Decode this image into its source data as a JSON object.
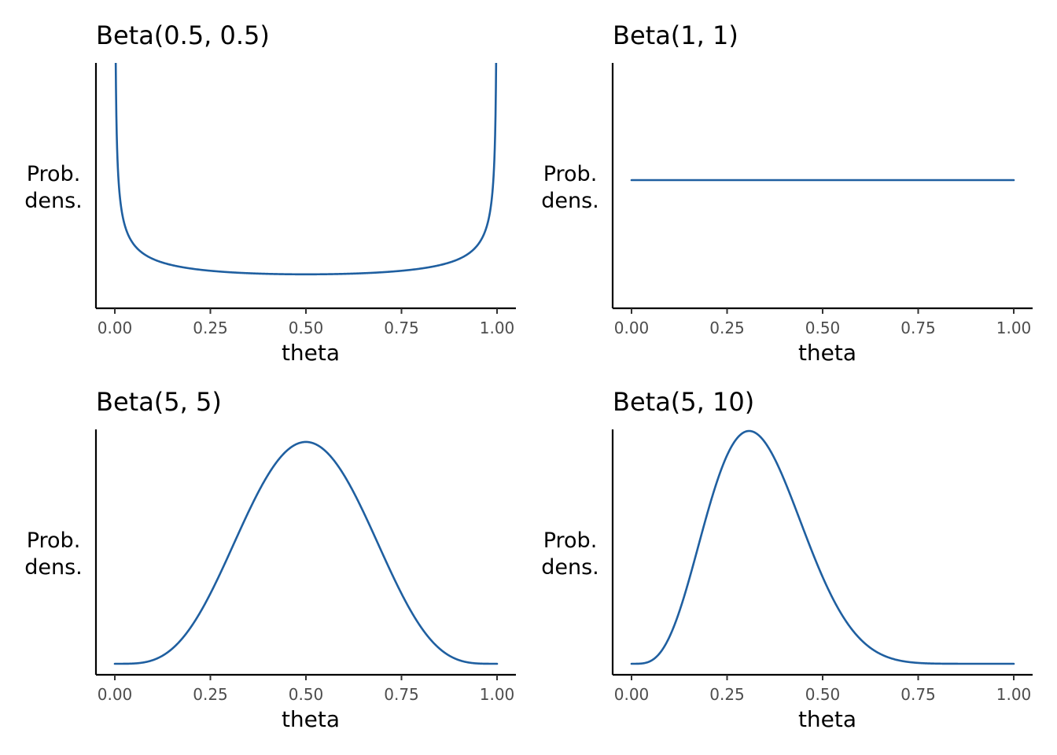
{
  "chart_data": [
    {
      "type": "line",
      "title": "Beta(0.5, 0.5)",
      "alpha": 0.5,
      "beta": 0.5,
      "xlabel": "theta",
      "ylabel": "Prob. dens.",
      "xlim": [
        0,
        1
      ],
      "ylim": [
        0,
        6.5
      ],
      "xticks": [
        "0.00",
        "0.25",
        "0.50",
        "0.75",
        "1.00"
      ],
      "grid": false,
      "color": "#1f5fa0"
    },
    {
      "type": "line",
      "title": "Beta(1, 1)",
      "alpha": 1,
      "beta": 1,
      "xlabel": "theta",
      "ylabel": "Prob. dens.",
      "xlim": [
        0,
        1
      ],
      "ylim": [
        0,
        2
      ],
      "xticks": [
        "0.00",
        "0.25",
        "0.50",
        "0.75",
        "1.00"
      ],
      "grid": false,
      "color": "#1f5fa0"
    },
    {
      "type": "line",
      "title": "Beta(5, 5)",
      "alpha": 5,
      "beta": 5,
      "xlabel": "theta",
      "ylabel": "Prob. dens.",
      "xlim": [
        0,
        1
      ],
      "ylim": [
        0,
        2.6
      ],
      "xticks": [
        "0.00",
        "0.25",
        "0.50",
        "0.75",
        "1.00"
      ],
      "grid": false,
      "color": "#1f5fa0"
    },
    {
      "type": "line",
      "title": "Beta(5, 10)",
      "alpha": 5,
      "beta": 10,
      "xlabel": "theta",
      "ylabel": "Prob. dens.",
      "xlim": [
        0,
        1
      ],
      "ylim": [
        0,
        3.3
      ],
      "xticks": [
        "0.00",
        "0.25",
        "0.50",
        "0.75",
        "1.00"
      ],
      "grid": false,
      "color": "#1f5fa0"
    }
  ]
}
